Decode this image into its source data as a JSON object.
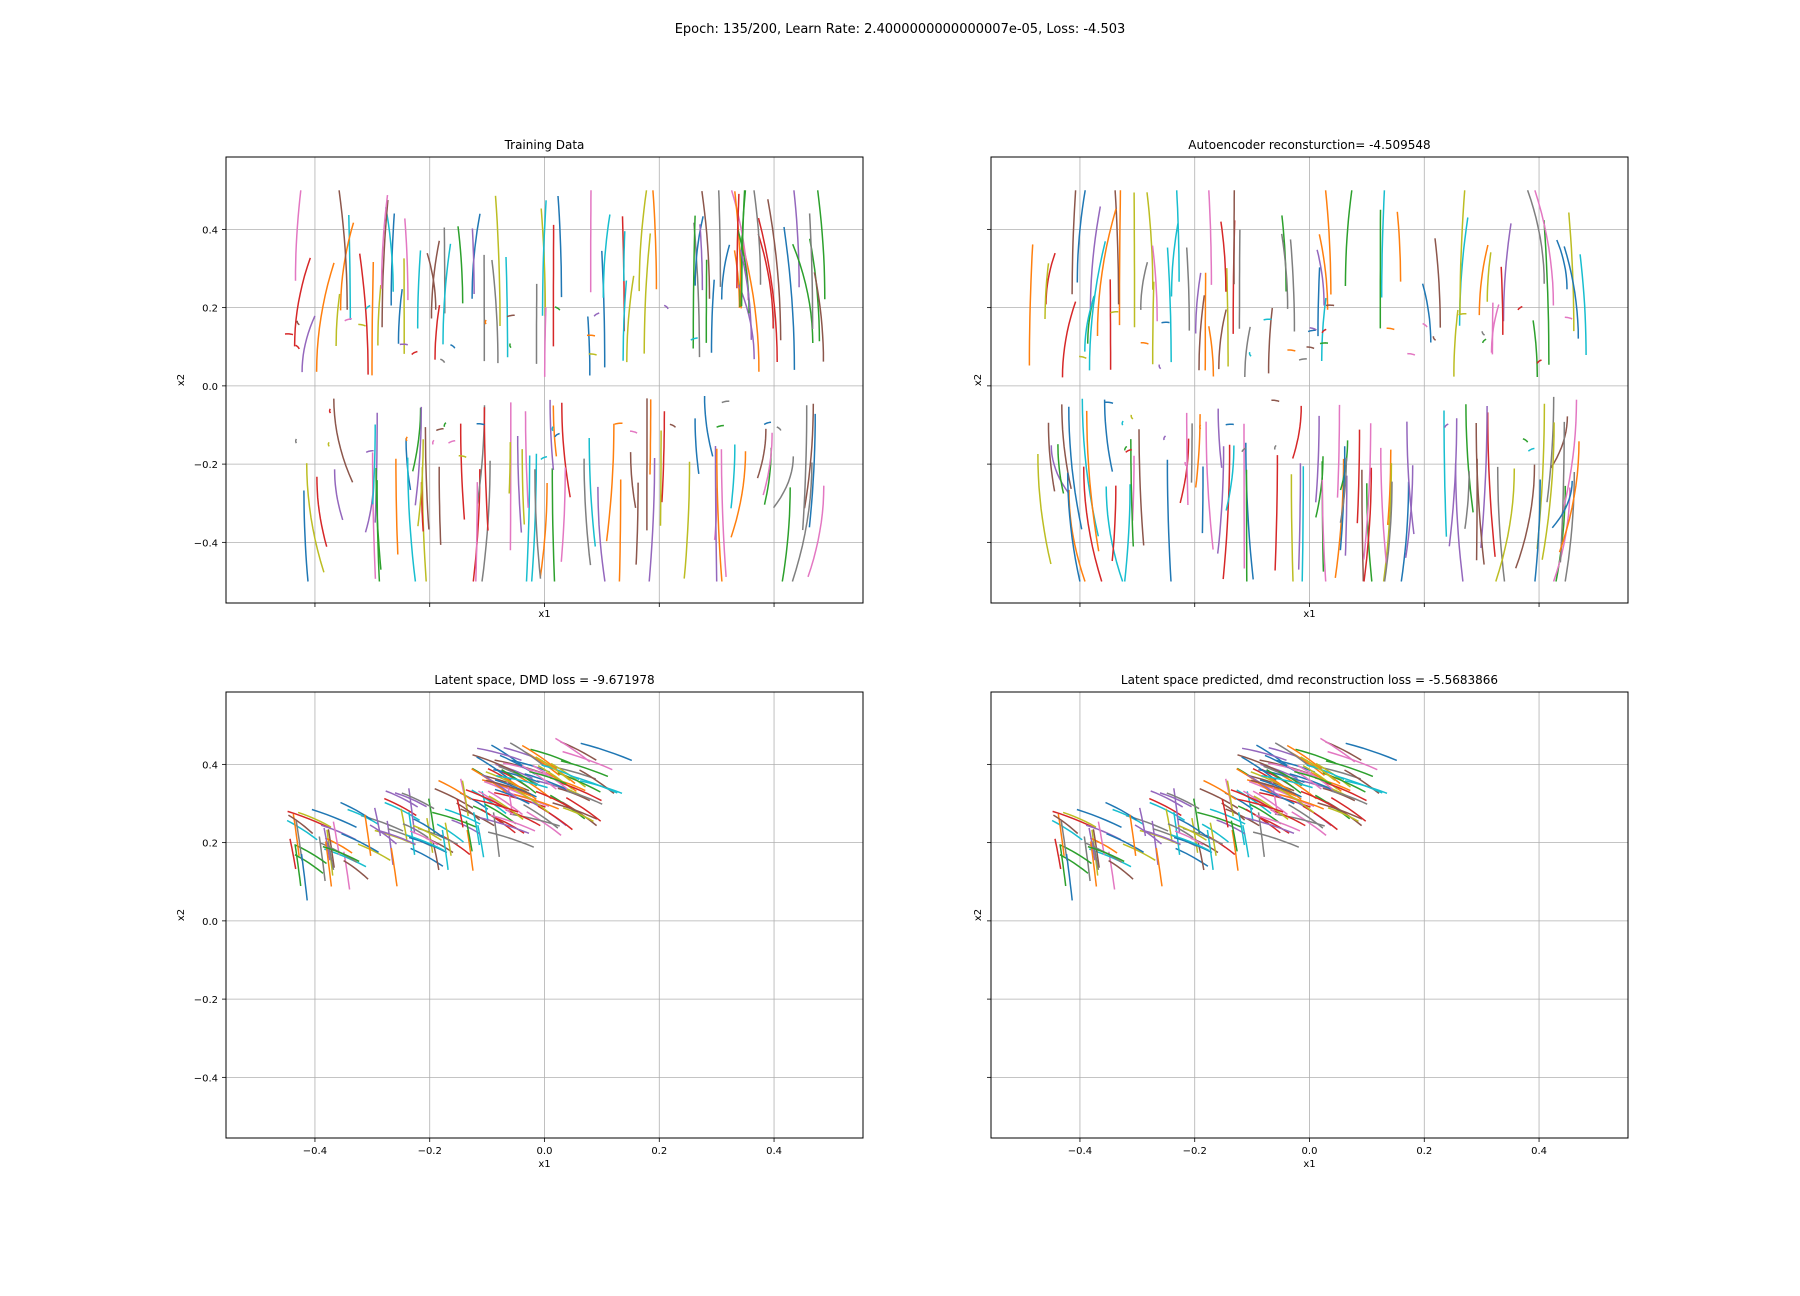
{
  "figure": {
    "suptitle": "Epoch: 135/200, Learn Rate: 2.4000000000000007e-05, Loss: -4.503"
  },
  "colors": [
    "#1f77b4",
    "#ff7f0e",
    "#2ca02c",
    "#d62728",
    "#9467bd",
    "#8c564b",
    "#e377c2",
    "#7f7f7f",
    "#bcbd22",
    "#17becf"
  ],
  "chart_data": [
    {
      "type": "line",
      "title": "Training Data",
      "xlabel": "x1",
      "ylabel": "x2",
      "xlim": [
        -0.555,
        0.555
      ],
      "ylim": [
        -0.555,
        0.585
      ],
      "xticks": [
        -0.4,
        -0.2,
        0.0,
        0.2,
        0.4
      ],
      "xtick_labels_visible": false,
      "yticks": [
        -0.4,
        -0.2,
        0.0,
        0.2,
        0.4
      ],
      "ytick_labels": [
        "−0.4",
        "−0.2",
        "0.0",
        "0.2",
        "0.4"
      ],
      "ytick_labels_visible": true,
      "grid": true,
      "series_description": "many short colored trajectories flowing vertically away from a saddle near x2=0",
      "pattern": "phase_portrait",
      "seed": 11
    },
    {
      "type": "line",
      "title": "Autoencoder reconsturction= -4.509548",
      "xlabel": "x1",
      "ylabel": "x2",
      "xlim": [
        -0.555,
        0.555
      ],
      "ylim": [
        -0.555,
        0.585
      ],
      "xticks": [
        -0.4,
        -0.2,
        0.0,
        0.2,
        0.4
      ],
      "xtick_labels_visible": false,
      "yticks": [
        -0.4,
        -0.2,
        0.0,
        0.2,
        0.4
      ],
      "ytick_labels": [
        "−0.4",
        "−0.2",
        "0.0",
        "0.2",
        "0.4"
      ],
      "ytick_labels_visible": false,
      "grid": true,
      "pattern": "phase_portrait",
      "seed": 29
    },
    {
      "type": "line",
      "title": "Latent space, DMD loss = -9.671978",
      "xlabel": "x1",
      "ylabel": "x2",
      "xlim": [
        -0.555,
        0.555
      ],
      "ylim": [
        -0.555,
        0.585
      ],
      "xticks": [
        -0.4,
        -0.2,
        0.0,
        0.2,
        0.4
      ],
      "xtick_labels": [
        "−0.4",
        "−0.2",
        "0.0",
        "0.2",
        "0.4"
      ],
      "xtick_labels_visible": true,
      "yticks": [
        -0.4,
        -0.2,
        0.0,
        0.2,
        0.4
      ],
      "ytick_labels": [
        "−0.4",
        "−0.2",
        "0.0",
        "0.2",
        "0.4"
      ],
      "ytick_labels_visible": true,
      "grid": true,
      "pattern": "latent",
      "seed": 47
    },
    {
      "type": "line",
      "title": "Latent space predicted, dmd reconstruction loss = -5.5683866",
      "xlabel": "x1",
      "ylabel": "x2",
      "xlim": [
        -0.555,
        0.555
      ],
      "ylim": [
        -0.555,
        0.585
      ],
      "xticks": [
        -0.4,
        -0.2,
        0.0,
        0.2,
        0.4
      ],
      "xtick_labels": [
        "−0.4",
        "−0.2",
        "0.0",
        "0.2",
        "0.4"
      ],
      "xtick_labels_visible": true,
      "yticks": [
        -0.4,
        -0.2,
        0.0,
        0.2,
        0.4
      ],
      "ytick_labels": [
        "−0.4",
        "−0.2",
        "0.0",
        "0.2",
        "0.4"
      ],
      "ytick_labels_visible": false,
      "grid": true,
      "pattern": "latent",
      "seed": 47
    }
  ]
}
